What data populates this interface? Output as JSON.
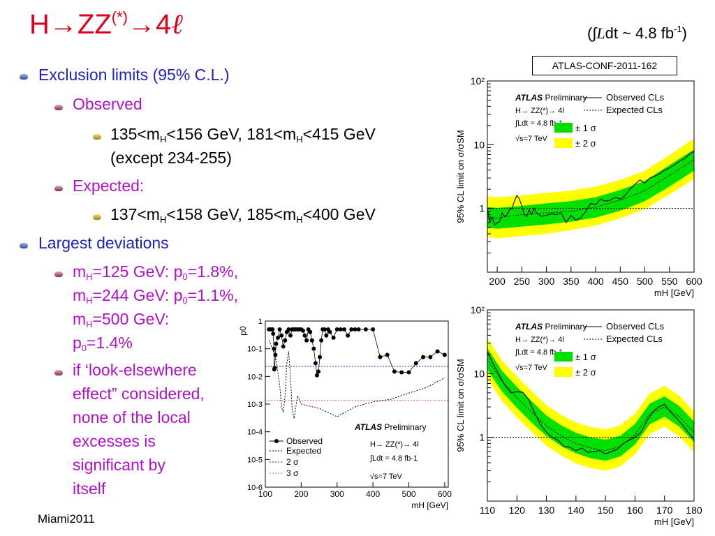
{
  "slide": {
    "title_main": "H",
    "title_arrow1": "→",
    "title_zz": "ZZ",
    "title_sup": "(*)",
    "title_arrow2": "→",
    "title_four": "4",
    "title_ell": "ℓ",
    "lumi_open": "(∫",
    "lumi_script": "L",
    "lumi_text": "dt ~ 4.8 fb",
    "lumi_sup": "-1",
    "lumi_close": ")",
    "conf_note": "ATLAS-CONF-2011-162",
    "footer": "Miami2011"
  },
  "bullets": {
    "b1": "Exclusion limits (95% C.L.)",
    "b1_1": "Observed",
    "b1_1_1a": "135<m",
    "b1_1_1b": "H",
    "b1_1_1c": "<156 GeV, 181<m",
    "b1_1_1d": "H",
    "b1_1_1e": "<415 GeV",
    "b1_1_1f": "(except 234-255)",
    "b1_2": "Expected:",
    "b1_2_1a": "137<m",
    "b1_2_1b": "H",
    "b1_2_1c": "<158 GeV, 185<m",
    "b1_2_1d": "H",
    "b1_2_1e": "<400 GeV",
    "b2": "Largest deviations",
    "b2_1_l1a": "m",
    "b2_1_l1b": "H",
    "b2_1_l1c": "=125 GeV: p",
    "b2_1_l1d": "0",
    "b2_1_l1e": "=1.8%,",
    "b2_1_l2a": "m",
    "b2_1_l2b": "H",
    "b2_1_l2c": "=244 GeV: p",
    "b2_1_l2d": "0",
    "b2_1_l2e": "=1.1%,",
    "b2_1_l3a": "m",
    "b2_1_l3b": "H",
    "b2_1_l3c": "=500 GeV:",
    "b2_1_l4a": "p",
    "b2_1_l4b": "0",
    "b2_1_l4c": "=1.4%",
    "b2_2_l1": "if ‘look-elsewhere",
    "b2_2_l2": "effect” considered,",
    "b2_2_l3": "none of the local",
    "b2_2_l4": "excesses is",
    "b2_2_l5": "significant by",
    "b2_2_l6": "itself"
  },
  "colors": {
    "title": "#e0001b",
    "blue_text": "#1f1fbf",
    "magenta_text": "#b011c9",
    "band_1sigma": "#00e000",
    "band_2sigma": "#ffff00",
    "sigma2_line": "#2020c0",
    "sigma3_line": "#d040c0"
  },
  "chart_data": [
    {
      "type": "line",
      "title": "",
      "ylabel": "95% CL limit on σ/σSM",
      "xlabel": "mH [GeV]",
      "log_y": true,
      "xlim": [
        180,
        600
      ],
      "ylim": [
        0.1,
        100
      ],
      "x_ticks": [
        "200",
        "250",
        "300",
        "350",
        "400",
        "450",
        "500",
        "550",
        "600"
      ],
      "y_ticks": [
        "1",
        "10",
        "10²"
      ],
      "legend": {
        "atlas": "ATLAS",
        "preliminary": "Preliminary",
        "process": "H→ ZZ(*)→ 4l",
        "lumi": "∫Ldt = 4.8 fb-1",
        "energy": "√s=7 TeV",
        "observed": "Observed CLs",
        "expected": "Expected CLs",
        "sigma1": "± 1 σ",
        "sigma2": "± 2 σ"
      },
      "series": [
        {
          "name": "Observed CLs",
          "x": [
            180,
            185,
            190,
            195,
            200,
            205,
            210,
            215,
            220,
            225,
            230,
            235,
            240,
            245,
            250,
            255,
            260,
            265,
            270,
            275,
            280,
            290,
            300,
            310,
            320,
            330,
            340,
            350,
            360,
            370,
            380,
            390,
            400,
            410,
            420,
            430,
            440,
            450,
            460,
            470,
            480,
            490,
            500,
            510,
            520,
            530,
            540,
            550,
            560,
            570,
            580,
            590,
            600
          ],
          "y": [
            1.0,
            0.62,
            0.72,
            0.55,
            0.6,
            0.62,
            0.85,
            0.75,
            0.8,
            0.95,
            1.0,
            1.3,
            1.6,
            1.4,
            1.1,
            0.8,
            0.75,
            0.95,
            0.8,
            1.0,
            0.85,
            0.75,
            0.78,
            0.82,
            0.8,
            0.85,
            0.6,
            0.78,
            0.65,
            0.72,
            0.9,
            1.2,
            1.15,
            1.4,
            1.3,
            1.35,
            1.5,
            1.4,
            1.6,
            2.0,
            2.4,
            2.8,
            2.5,
            3.0,
            3.2,
            3.5,
            4.0,
            4.3,
            4.8,
            5.5,
            6.0,
            7.0,
            7.9
          ]
        },
        {
          "name": "Expected CLs",
          "x": [
            180,
            200,
            220,
            250,
            300,
            350,
            400,
            450,
            500,
            550,
            600
          ],
          "y": [
            0.75,
            0.7,
            0.75,
            0.8,
            0.85,
            0.9,
            1.05,
            1.35,
            1.9,
            3.3,
            5.8
          ]
        }
      ],
      "bands": {
        "sigma1": {
          "x": [
            180,
            200,
            250,
            300,
            350,
            400,
            450,
            500,
            550,
            600
          ],
          "lo": [
            0.5,
            0.48,
            0.52,
            0.56,
            0.62,
            0.72,
            0.92,
            1.3,
            2.2,
            3.9
          ],
          "hi": [
            1.05,
            1.02,
            1.1,
            1.2,
            1.3,
            1.5,
            1.95,
            2.7,
            4.8,
            8.4
          ]
        },
        "sigma2": {
          "x": [
            180,
            200,
            250,
            300,
            350,
            400,
            450,
            500,
            550,
            600
          ],
          "lo": [
            0.36,
            0.34,
            0.37,
            0.4,
            0.46,
            0.54,
            0.7,
            0.98,
            1.65,
            2.9
          ],
          "hi": [
            1.55,
            1.5,
            1.6,
            1.75,
            1.9,
            2.2,
            2.8,
            3.9,
            6.9,
            12.5
          ]
        }
      },
      "reference_line": 1
    },
    {
      "type": "line",
      "title": "",
      "ylabel": "95% CL limit on σ/σSM",
      "xlabel": "mH [GeV]",
      "log_y": true,
      "xlim": [
        110,
        180
      ],
      "ylim": [
        0.1,
        100
      ],
      "x_ticks": [
        "110",
        "120",
        "130",
        "140",
        "150",
        "160",
        "170",
        "180"
      ],
      "y_ticks": [
        "1",
        "10",
        "10²"
      ],
      "legend": {
        "atlas": "ATLAS",
        "preliminary": "Preliminary",
        "process": "H→ ZZ(*)→ 4l",
        "lumi": "∫Ldt = 4.8 fb-1",
        "energy": "√s=7 TeV",
        "observed": "Observed CLs",
        "expected": "Expected CLs",
        "sigma1": "± 1 σ",
        "sigma2": "± 2 σ"
      },
      "series": [
        {
          "name": "Observed CLs",
          "x": [
            110,
            112,
            114,
            116,
            118,
            120,
            122,
            124,
            126,
            128,
            130,
            132,
            134,
            136,
            138,
            140,
            142,
            144,
            146,
            148,
            150,
            152,
            154,
            156,
            158,
            160,
            162,
            164,
            166,
            168,
            170,
            172,
            174,
            176,
            178,
            180
          ],
          "y": [
            22,
            14,
            9.5,
            6.5,
            5.0,
            5.2,
            5.1,
            3.9,
            2.4,
            1.6,
            1.2,
            1.0,
            0.9,
            0.72,
            0.7,
            0.62,
            0.68,
            0.58,
            0.6,
            0.62,
            0.55,
            0.6,
            0.65,
            0.8,
            0.9,
            1.0,
            1.2,
            1.8,
            2.5,
            3.0,
            3.3,
            2.5,
            2.0,
            1.6,
            1.2,
            0.95
          ]
        },
        {
          "name": "Expected CLs",
          "x": [
            110,
            115,
            120,
            125,
            130,
            135,
            140,
            145,
            150,
            155,
            160,
            165,
            170,
            175,
            180
          ],
          "y": [
            17,
            7.5,
            4.2,
            2.5,
            1.5,
            1.05,
            0.8,
            0.68,
            0.62,
            0.72,
            1.1,
            2.3,
            3.0,
            2.1,
            1.2
          ]
        }
      ],
      "bands": {
        "sigma1": {
          "x": [
            110,
            115,
            120,
            125,
            130,
            135,
            140,
            145,
            150,
            155,
            160,
            165,
            170,
            175,
            180
          ],
          "lo": [
            11.5,
            5.2,
            2.9,
            1.7,
            1.05,
            0.73,
            0.56,
            0.47,
            0.43,
            0.5,
            0.77,
            1.6,
            2.1,
            1.47,
            0.84
          ],
          "hi": [
            25,
            11,
            6.2,
            3.7,
            2.2,
            1.55,
            1.18,
            1.0,
            0.92,
            1.06,
            1.62,
            3.4,
            4.4,
            3.1,
            1.77
          ]
        },
        "sigma2": {
          "x": [
            110,
            115,
            120,
            125,
            130,
            135,
            140,
            145,
            150,
            155,
            160,
            165,
            170,
            175,
            180
          ],
          "lo": [
            8.3,
            3.7,
            2.05,
            1.22,
            0.74,
            0.52,
            0.39,
            0.33,
            0.3,
            0.35,
            0.54,
            1.13,
            1.47,
            1.03,
            0.59
          ],
          "hi": [
            36,
            16,
            9,
            5.3,
            3.2,
            2.25,
            1.7,
            1.45,
            1.33,
            1.54,
            2.35,
            4.9,
            6.4,
            4.5,
            2.55
          ]
        }
      },
      "reference_line": 1
    },
    {
      "type": "scatter",
      "title": "",
      "ylabel": "p0",
      "xlabel": "mH [GeV]",
      "log_y": true,
      "xlim": [
        100,
        610
      ],
      "ylim": [
        1e-06,
        1
      ],
      "x_ticks": [
        "100",
        "200",
        "300",
        "400",
        "500",
        "600"
      ],
      "y_ticks": [
        "10-6",
        "10-5",
        "10-4",
        "10-3",
        "10-2",
        "10-1",
        "1"
      ],
      "legend": {
        "atlas": "ATLAS",
        "preliminary": "Preliminary",
        "process": "H→ ZZ(*)→ 4l",
        "lumi": "∫Ldt = 4.8 fb-1",
        "energy": "√s=7 TeV",
        "observed": "Observed",
        "expected": "Expected",
        "sigma2": "2 σ",
        "sigma3": "3 σ"
      },
      "series": [
        {
          "name": "Observed",
          "x": [
            110,
            115,
            120,
            122,
            124,
            125,
            126,
            128,
            130,
            135,
            140,
            145,
            150,
            155,
            160,
            165,
            170,
            175,
            180,
            185,
            190,
            195,
            200,
            205,
            210,
            215,
            220,
            225,
            230,
            235,
            240,
            244,
            248,
            252,
            256,
            260,
            265,
            270,
            275,
            280,
            290,
            300,
            310,
            320,
            330,
            340,
            350,
            360,
            380,
            400,
            420,
            440,
            460,
            480,
            500,
            520,
            540,
            560,
            580,
            600
          ],
          "y": [
            0.5,
            0.5,
            0.5,
            0.35,
            0.1,
            0.018,
            0.02,
            0.06,
            0.15,
            0.25,
            0.5,
            0.3,
            0.12,
            0.2,
            0.4,
            0.5,
            0.3,
            0.5,
            0.5,
            0.5,
            0.5,
            0.5,
            0.5,
            0.45,
            0.3,
            0.2,
            0.5,
            0.4,
            0.2,
            0.1,
            0.03,
            0.011,
            0.015,
            0.05,
            0.2,
            0.5,
            0.5,
            0.3,
            0.5,
            0.4,
            0.25,
            0.5,
            0.5,
            0.5,
            0.3,
            0.5,
            0.5,
            0.5,
            0.5,
            0.5,
            0.05,
            0.06,
            0.015,
            0.014,
            0.014,
            0.03,
            0.05,
            0.05,
            0.08,
            0.06
          ]
        },
        {
          "name": "Expected",
          "x": [
            110,
            120,
            130,
            140,
            145,
            150,
            155,
            160,
            165,
            170,
            175,
            180,
            185,
            190,
            200,
            250,
            300,
            350,
            400,
            450,
            500,
            550,
            600
          ],
          "y": [
            0.2,
            0.1,
            0.04,
            0.005,
            0.0008,
            0.0005,
            0.002,
            0.03,
            0.08,
            0.01,
            0.0006,
            0.0003,
            0.0008,
            0.002,
            0.001,
            0.0007,
            0.00035,
            0.0008,
            0.0012,
            0.0015,
            0.0025,
            0.004,
            0.009
          ]
        }
      ],
      "reference_lines": [
        {
          "name": "2 σ",
          "y": 0.023
        },
        {
          "name": "3 σ",
          "y": 0.00135
        }
      ]
    }
  ]
}
